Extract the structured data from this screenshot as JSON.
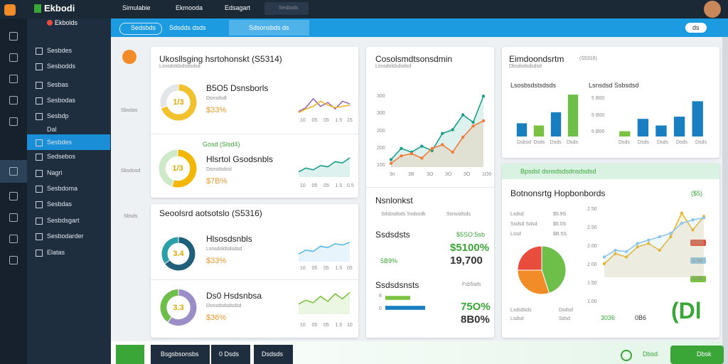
{
  "header": {
    "logo": "Ekbodi",
    "subtitle": "Ekbolds",
    "tabs": [
      "Simulabie",
      "Ekmooda",
      "Edsagart"
    ],
    "search": "Sesbods"
  },
  "toolbar": {
    "button": "Sedsbds",
    "dropdown": "Sdsdds dsds",
    "search": "Sdsonsbds ds",
    "right": "ds"
  },
  "sidebar": {
    "items": [
      "Sesbdes",
      "Sesbodds",
      "Sesbas",
      "Sesbodas",
      "Sesbdp",
      "Dal",
      "Sesbdes",
      "Sedsebos",
      "Nagri",
      "Sesbdoma",
      "Sesbdas",
      "Sesbdsgart",
      "Sesbodarder",
      "Elatas"
    ],
    "active": 6
  },
  "rail": {
    "labels": [
      "Sbsdas",
      "Sbsdosd",
      "Sbsds"
    ]
  },
  "cards": [
    {
      "title": "Ukosllsging hsrtohonskt (S5314)",
      "subtitle": "Lsnsdoldsdsdsdsd",
      "rows": [
        {
          "name": "B5O5 Dsnsborls",
          "label": "Dsnsdsdl",
          "value": "$33%",
          "center": "1/3",
          "donut": {
            "type": "donut",
            "values": [
              70,
              30
            ],
            "colors": [
              "#f2c12e",
              "#e3e6e8"
            ]
          },
          "spark": {
            "type": "line",
            "ylim": [
              0,
              100
            ],
            "series": [
              {
                "color": "#9b6ab5",
                "values": [
                  20,
                  35,
                  70,
                  40,
                  55,
                  30,
                  60,
                  50
                ]
              },
              {
                "color": "#f0b429",
                "values": [
                  15,
                  30,
                  40,
                  60,
                  45,
                  35,
                  40,
                  45
                ]
              }
            ]
          },
          "axis": [
            "10",
            "05",
            "05",
            "1.5",
            "15"
          ]
        },
        {
          "header": "Gosd (Slsd4)",
          "name": "Hlsrtol Gsodsnbls",
          "label": "Dsnsdsdssl",
          "value": "$7B%",
          "center": "1/3",
          "donut": {
            "type": "donut",
            "values": [
              55,
              45
            ],
            "colors": [
              "#f2b705",
              "#cde9c8"
            ]
          },
          "spark": {
            "type": "line",
            "ylim": [
              0,
              100
            ],
            "area": true,
            "series": [
              {
                "color": "#1a9e8a",
                "values": [
                  20,
                  35,
                  28,
                  45,
                  40,
                  60,
                  55,
                  75
                ]
              }
            ]
          },
          "axis": [
            "10",
            "05",
            "05",
            "1.5",
            "0.5"
          ]
        }
      ]
    },
    {
      "title": "Seoolsrd aotsotslo (S5316)",
      "rows": [
        {
          "name": "Hlsosdsnbls",
          "label": "Lsnsdoldsdsdsd",
          "value": "$33%",
          "center": "3.4",
          "donut": {
            "type": "donut",
            "values": [
              65,
              35
            ],
            "colors": [
              "#1f5f7a",
              "#2a9fa8"
            ]
          },
          "spark": {
            "type": "line",
            "ylim": [
              0,
              100
            ],
            "area": true,
            "series": [
              {
                "color": "#5bb8e8",
                "values": [
                  30,
                  45,
                  40,
                  60,
                  55,
                  70,
                  65,
                  75
                ]
              }
            ]
          },
          "axis": [
            "10",
            "05",
            "05",
            "1.5",
            "05"
          ]
        },
        {
          "name": "Ds0 Hsdsnbsa",
          "label": "Dsnsdsdsdsdsd",
          "value": "$36%",
          "center": "3.3",
          "donut": {
            "type": "donut",
            "values": [
              60,
              40
            ],
            "colors": [
              "#9b8ec7",
              "#6dbf4a"
            ]
          },
          "spark": {
            "type": "line",
            "ylim": [
              0,
              100
            ],
            "area": true,
            "series": [
              {
                "color": "#7cc242",
                "values": [
                  40,
                  55,
                  45,
                  70,
                  50,
                  80,
                  60,
                  85
                ]
              }
            ]
          },
          "axis": [
            "10",
            "05",
            "05",
            "1.5",
            "10"
          ]
        }
      ]
    },
    {
      "title": "Cosolsmdtsonsdmin",
      "subtitle": "Lsnsdoldsdsdsd",
      "chart": {
        "type": "line",
        "ylim": [
          0,
          100
        ],
        "area": true,
        "markers": true,
        "series": [
          {
            "color": "#1a9e8a",
            "values": [
              10,
              25,
              20,
              28,
              22,
              45,
              50,
              70,
              60,
              95
            ]
          },
          {
            "color": "#ef7d3c",
            "values": [
              5,
              15,
              18,
              12,
              25,
              30,
              20,
              40,
              55,
              62
            ]
          }
        ]
      },
      "ylabels": [
        "300",
        "300",
        "200",
        "200",
        "100"
      ],
      "xlabels": [
        "3n",
        "3B",
        "3O",
        "3O",
        "3O",
        "1O0"
      ],
      "section": {
        "title": "Nsnlonkst",
        "legend": [
          "Sdsbsdsds Ssdssdk",
          "Ssnssdsds"
        ],
        "label1": "Ssdsdsts",
        "value1": "$5SO:5sb",
        "big1": "$5100%",
        "small1": "5B9%",
        "big2": "19,700",
        "label2": "Ssdsdsnsts",
        "note2": "Fsb5sds",
        "bars": {
          "type": "hbar",
          "xlim": [
            0,
            100
          ],
          "values": [
            50,
            80
          ],
          "colors": [
            "#7cc242",
            "#1a7fc1"
          ]
        },
        "barlabels": [
          "8",
          "0"
        ],
        "big3": "75O%",
        "big4": "8B0%"
      }
    },
    {
      "title": "Eimdoondsrtm",
      "tag": "(S5316)",
      "subtitle": "Dbsdsdsdsdsd",
      "left": {
        "title": "Lsosbsdstsdsds",
        "chart": {
          "type": "bar",
          "ylim": [
            0,
            100
          ],
          "values": [
            30,
            25,
            55,
            95
          ],
          "colors": [
            "#1a7fc1",
            "#7cc242",
            "#1a7fc1",
            "#6dbf4a"
          ]
        },
        "legend": [
          "Dsbsd",
          "Dsds",
          "Dsds",
          "Dsds"
        ]
      },
      "right": {
        "title": "Lsnsdsd Ssbsdsd",
        "ylabels": [
          "5 B00",
          "5 B00",
          "5 B00"
        ],
        "chart": {
          "type": "bar",
          "ylim": [
            0,
            100
          ],
          "values": [
            12,
            40,
            25,
            45,
            80
          ],
          "colors": [
            "#7cc242",
            "#1a7fc1",
            "#1a7fc1",
            "#1a7fc1",
            "#1a7fc1"
          ]
        },
        "legend": [
          "Dsds",
          "Dsds",
          "Dsds",
          "Dsds",
          "Dsds"
        ]
      }
    },
    {
      "banner": "Bpsdst dsnsdsdsdnsdsdsd",
      "title": "Botnonsrtg Hopbonbords",
      "tag": "($5)",
      "labels": [
        "Lsdsd",
        "Ssdsd Sdsd",
        "Lssd"
      ],
      "values": [
        "$5.9S",
        "$5.0S",
        "$B.5S"
      ],
      "pie": {
        "type": "pie",
        "values": [
          45,
          30,
          25
        ],
        "colors": [
          "#6dbf4a",
          "#f28c28",
          "#e84c3d"
        ]
      },
      "foot": [
        "Lsdsdsds",
        "Dsdsd",
        "Lsdsd",
        "Sdsd"
      ],
      "chart": {
        "type": "line",
        "ylim": [
          0,
          100
        ],
        "area": true,
        "markers": true,
        "series": [
          {
            "color": "#f0b429",
            "values": [
              20,
              35,
              30,
              45,
              50,
              40,
              60,
              95,
              70,
              90
            ]
          },
          {
            "color": "#8ec6ea",
            "values": [
              30,
              40,
              38,
              50,
              55,
              60,
              65,
              80,
              85,
              88
            ]
          }
        ]
      },
      "ylabels": [
        "2.50",
        "2.50",
        "2.00",
        "2.00",
        "1.50",
        "1.00"
      ],
      "pills": [
        "0.5B",
        "0.5B",
        "0.5B"
      ],
      "stats": [
        "3036",
        "0B6"
      ],
      "big": "(Dl"
    }
  ],
  "footer": {
    "buttons": [
      "Bsgsbsonsbs",
      "0 Dsds",
      "Dsdsds"
    ],
    "status": "Dbsd",
    "action": "Dbsk"
  }
}
